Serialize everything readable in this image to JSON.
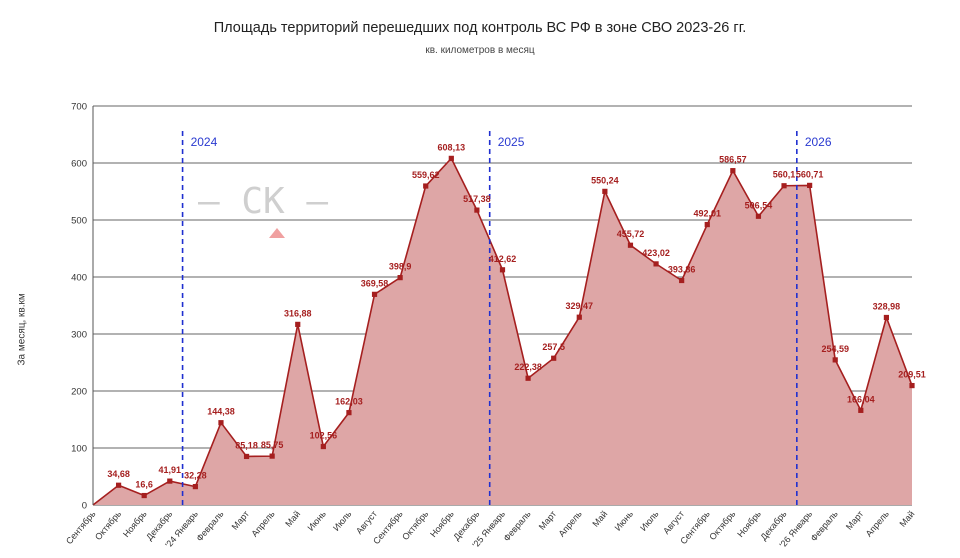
{
  "chart_data": {
    "type": "area",
    "title": "Площадь территорий перешедших под контроль ВС РФ в зоне СВО 2023-26 гг.",
    "subtitle": "кв. километров в месяц",
    "ylabel": "За месяц, кв.км",
    "ylim": [
      0,
      700
    ],
    "yticks": [
      0,
      100,
      200,
      300,
      400,
      500,
      600,
      700
    ],
    "grid": true,
    "colors": {
      "line": "#a51f1f",
      "fill": "#dea6a6",
      "marker": "#a51f1f",
      "label": "#a51f1f",
      "year_line": "#1f2fd0",
      "year_label": "#2a3ad0"
    },
    "categories": [
      "Сентябрь",
      "Октябрь",
      "Ноябрь",
      "Декабрь",
      "'24 Январь",
      "Февраль",
      "Март",
      "Апрель",
      "Май",
      "Июнь",
      "Июль",
      "Август",
      "Сентябрь",
      "Октябрь",
      "Ноябрь",
      "Декабрь",
      "'25 Январь",
      "Февраль",
      "Март",
      "Апрель",
      "Май",
      "Июнь",
      "Июль",
      "Август",
      "Сентябрь",
      "Октябрь",
      "Ноябрь",
      "Декабрь",
      "'26 Январь",
      "Февраль",
      "Март",
      "Апрель",
      "Май"
    ],
    "values": [
      0,
      34.68,
      16.6,
      41.91,
      32.28,
      144.38,
      85.18,
      85.75,
      316.88,
      102.56,
      162.03,
      369.58,
      398.9,
      559.62,
      608.13,
      517.38,
      412.62,
      222.38,
      257.5,
      329.47,
      550.24,
      455.72,
      423.02,
      393.86,
      492.01,
      586.57,
      506.54,
      560.1,
      560.71,
      254.59,
      166.04,
      328.98,
      209.51
    ],
    "data_labels": [
      "",
      "34,68",
      "16,6",
      "41,91",
      "32,28",
      "144,38",
      "85,18",
      "85,75",
      "316,88",
      "102,56",
      "162,03",
      "369,58",
      "398,9",
      "559,62",
      "608,13",
      "517,38",
      "412,62",
      "222,38",
      "257,5",
      "329,47",
      "550,24",
      "455,72",
      "423,02",
      "393,86",
      "492,01",
      "586,57",
      "506,54",
      "560,1",
      "560,71",
      "254,59",
      "166,04",
      "328,98",
      "209,51"
    ],
    "year_markers": [
      {
        "label": "2024",
        "at_index": 3.5
      },
      {
        "label": "2025",
        "at_index": 15.5
      },
      {
        "label": "2026",
        "at_index": 27.5
      }
    ]
  },
  "watermark": {
    "text": "— СК —"
  }
}
